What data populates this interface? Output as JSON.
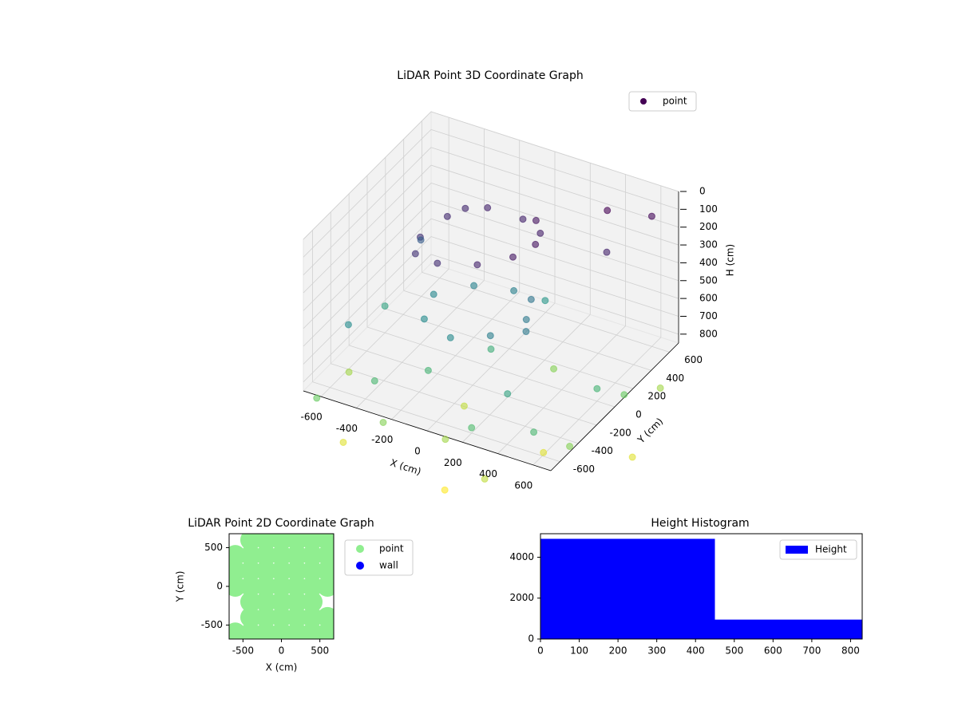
{
  "chart_data": [
    {
      "type": "scatter3d",
      "title": "LiDAR Point 3D Coordinate Graph",
      "xlabel": "X (cm)",
      "ylabel": "Y (cm)",
      "zlabel": "H (cm)",
      "legend": "point",
      "legend_color": "#440154",
      "colormap": "viridis",
      "xlim": [
        -700,
        700
      ],
      "ylim": [
        -700,
        700
      ],
      "zlim": [
        850,
        0
      ],
      "z_inverted": true,
      "xticks": [
        -600,
        -400,
        -200,
        0,
        200,
        400,
        600
      ],
      "yticks": [
        -600,
        -400,
        -200,
        0,
        200,
        400,
        600
      ],
      "zticks": [
        0,
        100,
        200,
        300,
        400,
        500,
        600,
        700,
        800
      ],
      "x": [
        200,
        150,
        0,
        -200,
        -350,
        -400,
        -350,
        -200,
        0,
        150,
        100,
        -300,
        200,
        150,
        0,
        -200,
        -350,
        -300,
        -100,
        100,
        250,
        -600,
        -500,
        400,
        500,
        600,
        -600,
        300,
        -400,
        0,
        200,
        -200,
        500,
        600,
        100,
        -650,
        -300,
        0,
        300,
        600,
        650,
        700,
        -700,
        400,
        -100,
        200,
        800,
        -500,
        100
      ],
      "y": [
        100,
        250,
        350,
        350,
        200,
        0,
        -150,
        -200,
        -150,
        -50,
        300,
        300,
        0,
        150,
        250,
        200,
        50,
        -150,
        -250,
        -200,
        -100,
        -400,
        200,
        500,
        300,
        600,
        0,
        -400,
        -500,
        0,
        -600,
        -300,
        -500,
        0,
        400,
        -650,
        -600,
        -500,
        -650,
        -300,
        200,
        500,
        -200,
        -200,
        -100,
        300,
        0,
        -650,
        -700
      ],
      "h": [
        150,
        180,
        200,
        200,
        220,
        250,
        250,
        230,
        200,
        160,
        150,
        210,
        520,
        500,
        550,
        560,
        580,
        600,
        590,
        540,
        520,
        600,
        400,
        100,
        200,
        120,
        700,
        700,
        800,
        750,
        820,
        780,
        800,
        780,
        650,
        900,
        950,
        1000,
        1050,
        950,
        900,
        1000,
        1000,
        1100,
        1050,
        950,
        1100,
        1100,
        1150
      ]
    },
    {
      "type": "scatter",
      "title": "LiDAR Point 2D Coordinate Graph",
      "xlabel": "X (cm)",
      "ylabel": "Y (cm)",
      "xlim": [
        -680,
        680
      ],
      "ylim": [
        -680,
        680
      ],
      "xticks": [
        -500,
        0,
        500
      ],
      "yticks": [
        -500,
        0,
        500
      ],
      "series": [
        {
          "name": "point",
          "color": "#90ee90",
          "x": [
            -400,
            -200,
            0,
            200,
            400,
            600,
            -600,
            -400,
            -200,
            0,
            200,
            400,
            600,
            -600,
            -400,
            -200,
            0,
            200,
            400,
            600,
            -600,
            -400,
            -200,
            0,
            200,
            400,
            600,
            -400,
            -200,
            0,
            200,
            400,
            -400,
            -200,
            0,
            200,
            400,
            600,
            -600,
            -400,
            -200,
            0,
            200,
            400,
            600
          ],
          "y": [
            600,
            600,
            600,
            600,
            600,
            600,
            400,
            400,
            400,
            400,
            400,
            400,
            400,
            200,
            200,
            200,
            200,
            200,
            200,
            200,
            0,
            0,
            0,
            0,
            0,
            0,
            0,
            -200,
            -200,
            -200,
            -200,
            -200,
            -400,
            -400,
            -400,
            -400,
            -400,
            -400,
            -600,
            -600,
            -600,
            -600,
            -600,
            -600,
            -600
          ]
        },
        {
          "name": "wall",
          "color": "#0000ff",
          "x": [],
          "y": []
        }
      ]
    },
    {
      "type": "histogram",
      "title": "Height Histogram",
      "legend": "Height",
      "color": "#0000ff",
      "bins": [
        0,
        450,
        830
      ],
      "counts": [
        4900,
        950
      ],
      "xlim": [
        0,
        830
      ],
      "ylim": [
        0,
        5150
      ],
      "xticks": [
        0,
        100,
        200,
        300,
        400,
        500,
        600,
        700,
        800
      ],
      "yticks": [
        0,
        2000,
        4000
      ]
    }
  ]
}
